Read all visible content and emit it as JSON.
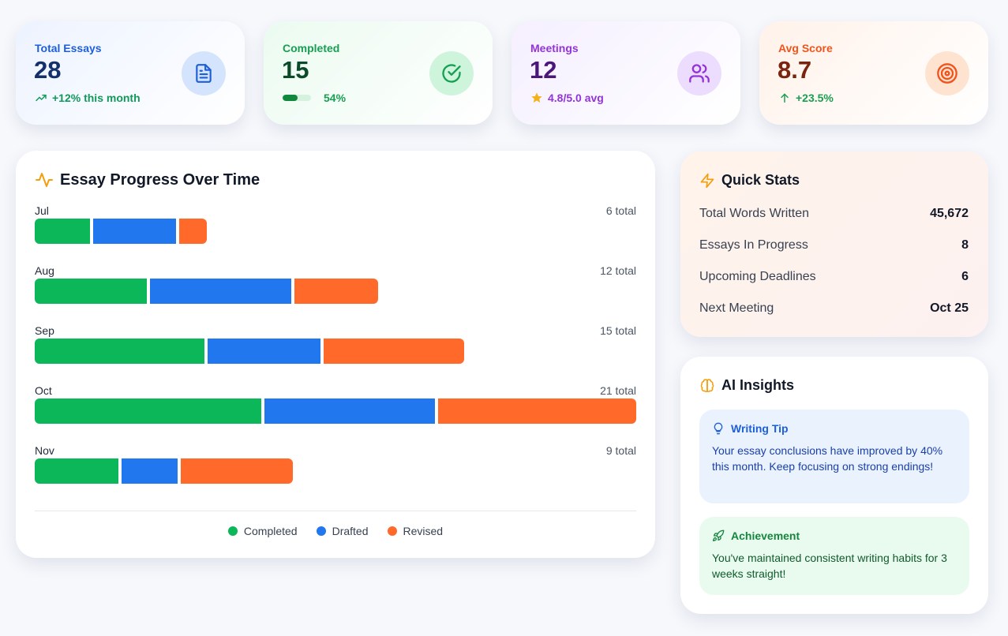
{
  "stats": {
    "essays": {
      "label": "Total Essays",
      "value": "28",
      "sub": "+12% this month",
      "icon": "document-icon"
    },
    "completed": {
      "label": "Completed",
      "value": "15",
      "sub": "54%",
      "progress_pct": 54,
      "icon": "check-circle-icon"
    },
    "meetings": {
      "label": "Meetings",
      "value": "12",
      "sub": "4.8/5.0 avg",
      "icon": "users-icon"
    },
    "score": {
      "label": "Avg Score",
      "value": "8.7",
      "sub": "+23.5%",
      "icon": "target-icon"
    }
  },
  "chart_panel": {
    "title": "Essay Progress Over Time",
    "icon": "activity-icon"
  },
  "chart_data": {
    "type": "bar",
    "orientation": "horizontal",
    "stacked": true,
    "title": "Essay Progress Over Time",
    "categories": [
      "Jul",
      "Aug",
      "Sep",
      "Oct",
      "Nov"
    ],
    "totals": [
      6,
      12,
      15,
      21,
      9
    ],
    "total_labels": [
      "6 total",
      "12 total",
      "15 total",
      "21 total",
      "9 total"
    ],
    "scale_max": 21,
    "series": [
      {
        "name": "Completed",
        "color": "#0bb759",
        "values": [
          2,
          4,
          6,
          8,
          3
        ]
      },
      {
        "name": "Drafted",
        "color": "#2177ee",
        "values": [
          3,
          5,
          4,
          6,
          2
        ]
      },
      {
        "name": "Revised",
        "color": "#ff6a2b",
        "values": [
          1,
          3,
          5,
          7,
          4
        ]
      }
    ],
    "legend": [
      "Completed",
      "Drafted",
      "Revised"
    ]
  },
  "quick_stats": {
    "title": "Quick Stats",
    "icon": "lightning-icon",
    "rows": [
      {
        "label": "Total Words Written",
        "value": "45,672"
      },
      {
        "label": "Essays In Progress",
        "value": "8"
      },
      {
        "label": "Upcoming Deadlines",
        "value": "6"
      },
      {
        "label": "Next Meeting",
        "value": "Oct 25"
      }
    ]
  },
  "ai_insights": {
    "title": "AI Insights",
    "icon": "brain-icon",
    "tip": {
      "title": "Writing Tip",
      "icon": "lightbulb-icon",
      "text": "Your essay conclusions have improved by 40% this month. Keep focusing on strong endings!"
    },
    "achievement": {
      "title": "Achievement",
      "icon": "rocket-icon",
      "text": "You've maintained consistent writing habits for 3 weeks straight!"
    }
  },
  "colors": {
    "completed": "#0bb759",
    "drafted": "#2177ee",
    "revised": "#ff6a2b"
  }
}
